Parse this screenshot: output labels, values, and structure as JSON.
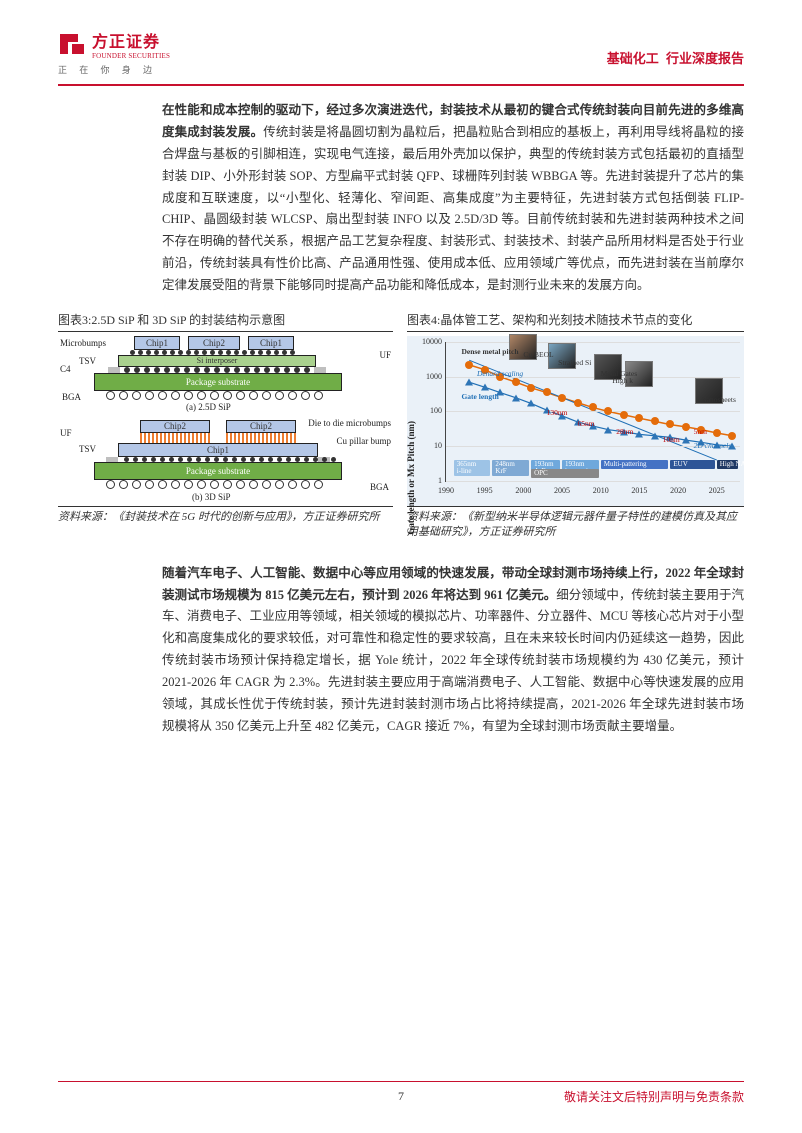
{
  "colors": {
    "brand_red": "#c8102e",
    "text_dark": "#333333",
    "series_orange": "#e46c0a",
    "series_blue": "#1f6fb5",
    "series_triangle": "#2e75b6",
    "substrate_green": "#70ad47",
    "interposer_green": "#a9d18e",
    "chip_blue": "#b4c7e7",
    "uf_gray": "#bfbfbf",
    "band_193": "#6fa8dc",
    "band_mp": "#4472c4",
    "band_euv": "#2e5597",
    "band_hna": "#1f3864",
    "band_iline": "#9dc3e6",
    "band_krf": "#7fa9d4",
    "fig4_bg": "#eaf1f8"
  },
  "header": {
    "company_cn": "方正证券",
    "company_en": "FOUNDER SECURITIES",
    "tagline": "正 在 你 身 边",
    "industry": "基础化工",
    "doc_type": "行业深度报告"
  },
  "para1": {
    "bold": "在性能和成本控制的驱动下，经过多次演进迭代，封装技术从最初的键合式传统封装向目前先进的多维高度集成封装发展。",
    "rest": "传统封装是将晶圆切割为晶粒后，把晶粒贴合到相应的基板上，再利用导线将晶粒的接合焊盘与基板的引脚相连，实现电气连接，最后用外壳加以保护，典型的传统封装方式包括最初的直插型封装 DIP、小外形封装 SOP、方型扁平式封装 QFP、球栅阵列封装 WBBGA 等。先进封装提升了芯片的集成度和互联速度，以“小型化、轻薄化、窄间距、高集成度”为主要特征，先进封装方式包括倒装 FLIP-CHIP、晶圆级封装 WLCSP、扇出型封装 INFO 以及 2.5D/3D 等。目前传统封装和先进封装两种技术之间不存在明确的替代关系，根据产品工艺复杂程度、封装形式、封装技术、封装产品所用材料是否处于行业前沿，传统封装具有性价比高、产品通用性强、使用成本低、应用领域广等优点，而先进封装在当前摩尔定律发展受阻的背景下能够同时提高产品功能和降低成本，是封测行业未来的发展方向。"
  },
  "fig3": {
    "title": "图表3:2.5D SiP 和 3D SiP 的封装结构示意图",
    "source": "资料来源：《封装技术在 5G 时代的创新与应用》，方正证券研究所",
    "labels": {
      "microbumps": "Microbumps",
      "chip1": "Chip1",
      "chip2": "Chip2",
      "chip1b": "Chip1",
      "c4": "C4",
      "tsv": "TSV",
      "si_interposer": "Si interposer",
      "uf": "UF",
      "package_substrate": "Package substrate",
      "bga": "BGA",
      "caption_a": "(a) 2.5D SiP",
      "die_to_die": "Die to die microbumps",
      "cu_pillar": "Cu pillar bump",
      "caption_b": "(b) 3D SiP"
    }
  },
  "fig4": {
    "title": "图表4:晶体管工艺、架构和光刻技术随技术节点的变化",
    "source": "资料来源：《新型纳米半导体逻辑元器件量子特性的建模仿真及其应用基础研究》，方正证券研究所",
    "y_label": "Gate length or Mx Pitch (nm)",
    "y_ticks": [
      1,
      10,
      100,
      1000,
      10000
    ],
    "y_tick_labels": [
      "1",
      "10",
      "100",
      "1000",
      "10000"
    ],
    "x_ticks": [
      1990,
      1995,
      2000,
      2005,
      2010,
      2015,
      2020,
      2025
    ],
    "x_tick_labels": [
      "1990",
      "1995",
      "2000",
      "2005",
      "2010",
      "2015",
      "2020",
      "2025"
    ],
    "series_orange": {
      "name": "Dense metal pitch",
      "points": [
        {
          "x": 1993,
          "y": 2200
        },
        {
          "x": 1995,
          "y": 1600
        },
        {
          "x": 1997,
          "y": 1000
        },
        {
          "x": 1999,
          "y": 700
        },
        {
          "x": 2001,
          "y": 480
        },
        {
          "x": 2003,
          "y": 350
        },
        {
          "x": 2005,
          "y": 250
        },
        {
          "x": 2007,
          "y": 180
        },
        {
          "x": 2009,
          "y": 130
        },
        {
          "x": 2011,
          "y": 100
        },
        {
          "x": 2013,
          "y": 80
        },
        {
          "x": 2015,
          "y": 64
        },
        {
          "x": 2017,
          "y": 52
        },
        {
          "x": 2019,
          "y": 42
        },
        {
          "x": 2021,
          "y": 36
        },
        {
          "x": 2023,
          "y": 30
        },
        {
          "x": 2025,
          "y": 24
        },
        {
          "x": 2027,
          "y": 20
        }
      ]
    },
    "series_blue": {
      "name": "Gate length",
      "points": [
        {
          "x": 1993,
          "y": 700
        },
        {
          "x": 1995,
          "y": 500
        },
        {
          "x": 1997,
          "y": 350
        },
        {
          "x": 1999,
          "y": 250
        },
        {
          "x": 2001,
          "y": 170
        },
        {
          "x": 2003,
          "y": 110
        },
        {
          "x": 2005,
          "y": 75
        },
        {
          "x": 2007,
          "y": 50
        },
        {
          "x": 2009,
          "y": 38
        },
        {
          "x": 2011,
          "y": 30
        },
        {
          "x": 2013,
          "y": 26
        },
        {
          "x": 2015,
          "y": 22
        },
        {
          "x": 2017,
          "y": 20
        },
        {
          "x": 2019,
          "y": 18
        },
        {
          "x": 2021,
          "y": 15
        },
        {
          "x": 2023,
          "y": 13
        },
        {
          "x": 2025,
          "y": 11
        },
        {
          "x": 2027,
          "y": 10
        }
      ]
    },
    "annotations": {
      "dense_metal": "Dense metal pitch",
      "gate_length": "Gate length",
      "dennard": "Denard scaling",
      "cu_beol": "Cu BEOL",
      "strained_si": "Strained Si",
      "metal_gates": "Metal Gates",
      "high_k": "High k",
      "nanosheets": "Nanosheets",
      "2d_channels": "2D channels",
      "n130": "130nm",
      "n65": "65nm",
      "n28": "28nm",
      "n10": "10nm",
      "n5": "5nm"
    },
    "bands": {
      "iline": "365nm\ni-line",
      "krf": "248nm\nKrF",
      "arf": "193nm\nArF",
      "imm": "193nm\nimmersion",
      "opc": "OPC",
      "mp": "Multi-pattering",
      "euv": "EUV",
      "hna": "High NA"
    }
  },
  "para2": {
    "bold": "随着汽车电子、人工智能、数据中心等应用领域的快速发展，带动全球封测市场持续上行，2022 年全球封装测试市场规模为 815 亿美元左右，预计到 2026 年将达到 961 亿美元。",
    "rest": "细分领域中，传统封装主要用于汽车、消费电子、工业应用等领域，相关领域的模拟芯片、功率器件、分立器件、MCU 等核心芯片对于小型化和高度集成化的要求较低，对可靠性和稳定性的要求较高，且在未来较长时间内仍延续这一趋势，因此传统封装市场预计保持稳定增长，据 Yole 统计，2022 年全球传统封装市场规模约为 430 亿美元，预计 2021-2026 年 CAGR 为 2.3%。先进封装主要应用于高端消费电子、人工智能、数据中心等快速发展的应用领域，其成长性优于传统封装，预计先进封装封测市场占比将持续提高，2021-2026 年全球先进封装市场规模将从 350 亿美元上升至 482 亿美元，CAGR 接近 7%，有望为全球封测市场贡献主要增量。"
  },
  "footer": {
    "page": "7",
    "text": "敬请关注文后特别声明与免责条款"
  }
}
